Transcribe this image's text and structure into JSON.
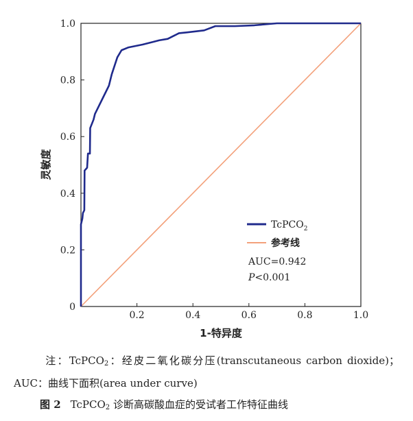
{
  "chart_data": {
    "type": "line",
    "title": "",
    "xlabel": "1-特异度",
    "ylabel": "灵敏度",
    "xlim": [
      0,
      1
    ],
    "ylim": [
      0,
      1
    ],
    "x_ticks": [
      "0.2",
      "0.4",
      "0.6",
      "0.8",
      "1.0"
    ],
    "y_ticks": [
      "0",
      "0.2",
      "0.4",
      "0.6",
      "0.8",
      "1.0"
    ],
    "grid": false,
    "legend_position": "bottom-right",
    "series": [
      {
        "name_base": "TcPCO",
        "name_sub": "2",
        "color": "#1f2a8c",
        "points": [
          [
            0,
            0
          ],
          [
            0,
            0.29
          ],
          [
            0.005,
            0.31
          ],
          [
            0.007,
            0.33
          ],
          [
            0.012,
            0.34
          ],
          [
            0.013,
            0.48
          ],
          [
            0.022,
            0.49
          ],
          [
            0.025,
            0.54
          ],
          [
            0.032,
            0.54
          ],
          [
            0.033,
            0.63
          ],
          [
            0.045,
            0.66
          ],
          [
            0.05,
            0.68
          ],
          [
            0.06,
            0.7
          ],
          [
            0.08,
            0.74
          ],
          [
            0.09,
            0.76
          ],
          [
            0.1,
            0.78
          ],
          [
            0.11,
            0.82
          ],
          [
            0.12,
            0.85
          ],
          [
            0.13,
            0.88
          ],
          [
            0.145,
            0.905
          ],
          [
            0.17,
            0.915
          ],
          [
            0.22,
            0.925
          ],
          [
            0.26,
            0.935
          ],
          [
            0.28,
            0.94
          ],
          [
            0.31,
            0.945
          ],
          [
            0.33,
            0.955
          ],
          [
            0.35,
            0.965
          ],
          [
            0.38,
            0.968
          ],
          [
            0.44,
            0.975
          ],
          [
            0.48,
            0.99
          ],
          [
            0.55,
            0.99
          ],
          [
            0.62,
            0.993
          ],
          [
            0.7,
            1.0
          ],
          [
            1.0,
            1.0
          ]
        ]
      },
      {
        "name": "参考线",
        "color": "#f3a07a",
        "points": [
          [
            0,
            0
          ],
          [
            1,
            1
          ]
        ]
      }
    ],
    "annotations": {
      "auc": "AUC=0.942",
      "p_italic": "P",
      "p_rest": "<0.001"
    }
  },
  "note": {
    "prefix": "注：",
    "body_a": "TcPCO",
    "body_a_sub": "2",
    "body_b": "：经皮二氧化碳分压(transcutaneous carbon dioxide)；AUC：曲线下面积(area under curve)"
  },
  "caption": {
    "fig_num": "图 2",
    "text_a": "TcPCO",
    "text_a_sub": "2",
    "text_b": "诊断高碳酸血症的受试者工作特征曲线"
  }
}
